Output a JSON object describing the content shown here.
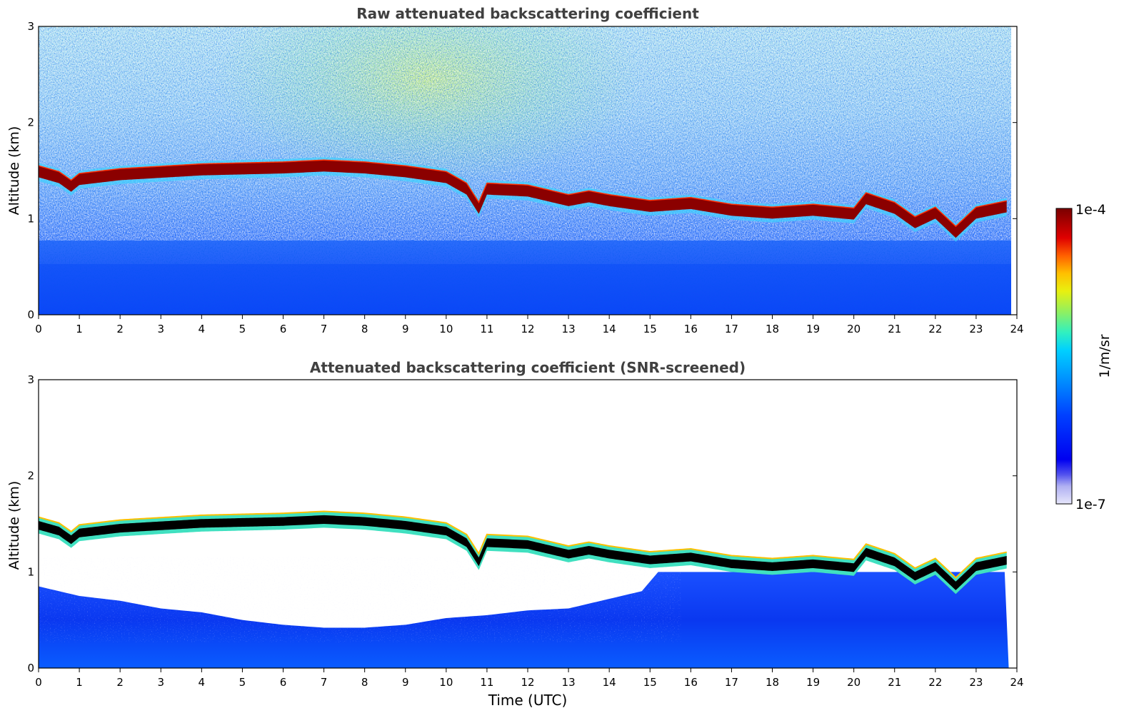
{
  "chart_data": [
    {
      "type": "heatmap",
      "title": "Raw attenuated backscattering coefficient",
      "xlabel": "",
      "ylabel": "Altitude (km)",
      "xlim": [
        0,
        24
      ],
      "ylim": [
        0,
        3
      ],
      "xticks": [
        "0",
        "1",
        "2",
        "3",
        "4",
        "5",
        "6",
        "7",
        "8",
        "9",
        "10",
        "11",
        "12",
        "13",
        "14",
        "15",
        "16",
        "17",
        "18",
        "19",
        "20",
        "21",
        "22",
        "23",
        "24"
      ],
      "yticks": [
        "0",
        "1",
        "2",
        "3"
      ],
      "screened": false,
      "cloud_base_km": {
        "time_utc": [
          0,
          0.5,
          0.8,
          1,
          2,
          4,
          6,
          7,
          8,
          9,
          10,
          10.5,
          10.8,
          11,
          12,
          13,
          13.5,
          14,
          15,
          16,
          17,
          18,
          19,
          20,
          20.3,
          21,
          21.5,
          22,
          22.5,
          23,
          23.8
        ],
        "altitude_km": [
          1.48,
          1.42,
          1.33,
          1.4,
          1.45,
          1.5,
          1.52,
          1.54,
          1.52,
          1.48,
          1.42,
          1.3,
          1.1,
          1.3,
          1.28,
          1.18,
          1.22,
          1.18,
          1.12,
          1.15,
          1.08,
          1.05,
          1.08,
          1.04,
          1.2,
          1.1,
          0.95,
          1.05,
          0.85,
          1.05,
          1.12
        ]
      }
    },
    {
      "type": "heatmap",
      "title": "Attenuated backscattering coefficient (SNR-screened)",
      "xlabel": "Time (UTC)",
      "ylabel": "Altitude (km)",
      "xlim": [
        0,
        24
      ],
      "ylim": [
        0,
        3
      ],
      "xticks": [
        "0",
        "1",
        "2",
        "3",
        "4",
        "5",
        "6",
        "7",
        "8",
        "9",
        "10",
        "11",
        "12",
        "13",
        "14",
        "15",
        "16",
        "17",
        "18",
        "19",
        "20",
        "21",
        "22",
        "23",
        "24"
      ],
      "yticks": [
        "0",
        "1",
        "2",
        "3"
      ],
      "screened": true,
      "cloud_base_km": {
        "time_utc": [
          0,
          0.5,
          0.8,
          1,
          2,
          4,
          6,
          7,
          8,
          9,
          10,
          10.5,
          10.8,
          11,
          12,
          13,
          13.5,
          14,
          15,
          16,
          17,
          18,
          19,
          20,
          20.3,
          21,
          21.5,
          22,
          22.5,
          23,
          23.8
        ],
        "altitude_km": [
          1.48,
          1.42,
          1.33,
          1.4,
          1.45,
          1.5,
          1.52,
          1.54,
          1.52,
          1.48,
          1.42,
          1.3,
          1.1,
          1.3,
          1.28,
          1.18,
          1.22,
          1.18,
          1.12,
          1.15,
          1.08,
          1.05,
          1.08,
          1.04,
          1.2,
          1.1,
          0.95,
          1.05,
          0.85,
          1.05,
          1.12
        ]
      },
      "screened_top_km": {
        "time_utc": [
          0,
          1,
          2,
          3,
          4,
          5,
          6,
          7,
          8,
          9,
          10,
          11,
          12,
          13,
          14,
          14.8,
          15.2,
          24
        ],
        "altitude_km": [
          0.85,
          0.75,
          0.7,
          0.62,
          0.58,
          0.5,
          0.45,
          0.42,
          0.42,
          0.45,
          0.52,
          0.55,
          0.6,
          0.62,
          0.72,
          0.8,
          1.0,
          1.0
        ]
      }
    }
  ],
  "colorbar": {
    "label": "1/m/sr",
    "max_label": "1e-4",
    "min_label": "1e-7",
    "colors": [
      "#e6e6fb",
      "#c8c8f6",
      "#a0a0f0",
      "#6060ee",
      "#0000f0",
      "#0018ff",
      "#0050ff",
      "#0090ff",
      "#00c8ff",
      "#20e8d8",
      "#50f0a0",
      "#90f060",
      "#d0f020",
      "#ffe000",
      "#ffa000",
      "#ff5000",
      "#e00000",
      "#a00000",
      "#800000"
    ]
  },
  "style": {
    "title_color": "#404040",
    "cloud_color": "#8b0000",
    "cloud_core_screened": "#000000",
    "aerosol_blue": "#0a3cf0"
  }
}
